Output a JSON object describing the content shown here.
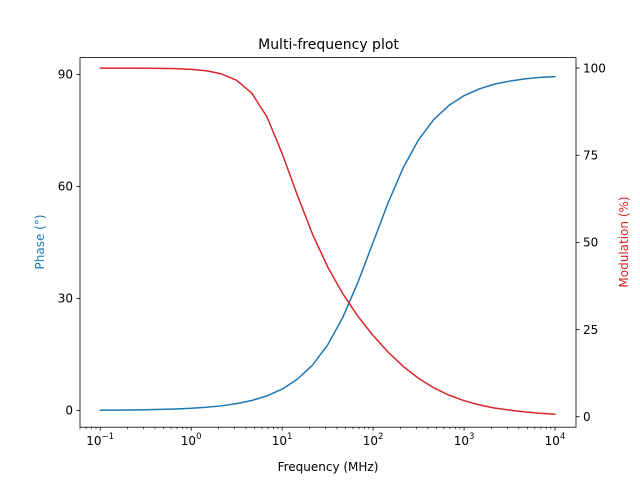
{
  "chart_data": {
    "type": "line",
    "title": "Multi-frequency plot",
    "xlabel": "Frequency (MHz)",
    "ylabel_left": "Phase (°)",
    "ylabel_right": "Modulation (%)",
    "x_scale": "log",
    "xlim": [
      0.06,
      17000
    ],
    "ylim_left": [
      -4.5,
      94.5
    ],
    "ylim_right": [
      -3,
      103
    ],
    "x_ticks": [
      0.1,
      1,
      10,
      100,
      1000,
      10000
    ],
    "x_tick_labels": [
      {
        "base": "10",
        "exp": "−1"
      },
      {
        "base": "10",
        "exp": "0"
      },
      {
        "base": "10",
        "exp": "1"
      },
      {
        "base": "10",
        "exp": "2"
      },
      {
        "base": "10",
        "exp": "3"
      },
      {
        "base": "10",
        "exp": "4"
      }
    ],
    "y_ticks_left": [
      0,
      30,
      60,
      90
    ],
    "y_ticks_right": [
      0,
      25,
      50,
      75,
      100
    ],
    "grid": false,
    "legend": "none",
    "x": [
      0.1,
      0.1468,
      0.2154,
      0.3162,
      0.4642,
      0.6813,
      1.0,
      1.468,
      2.154,
      3.162,
      4.642,
      6.813,
      10.0,
      14.68,
      21.54,
      31.62,
      46.42,
      68.13,
      100.0,
      146.8,
      215.4,
      316.2,
      464.2,
      681.3,
      1000,
      1468,
      2154,
      3162,
      4642,
      6813,
      10000
    ],
    "series": [
      {
        "axis": "left",
        "color": "#1f77b4",
        "values": [
          0.06,
          0.08,
          0.12,
          0.18,
          0.27,
          0.39,
          0.57,
          0.84,
          1.23,
          1.81,
          2.65,
          3.89,
          5.71,
          8.34,
          12.12,
          17.5,
          24.9,
          34.3,
          45.0,
          55.7,
          65.1,
          72.5,
          77.9,
          81.7,
          84.3,
          86.1,
          87.4,
          88.2,
          88.8,
          89.2,
          89.4
        ]
      },
      {
        "axis": "right",
        "color": "#d62728",
        "values": [
          99.99,
          99.99,
          99.98,
          99.96,
          99.92,
          99.83,
          99.64,
          99.22,
          98.33,
          96.5,
          92.8,
          86.0,
          75.5,
          63.6,
          52.4,
          43.0,
          35.3,
          28.8,
          23.3,
          18.5,
          14.4,
          11.0,
          8.3,
          6.2,
          4.6,
          3.4,
          2.5,
          1.9,
          1.4,
          1.0,
          0.7
        ]
      }
    ]
  }
}
